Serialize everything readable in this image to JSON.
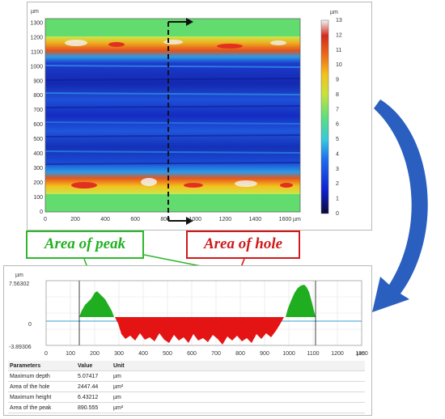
{
  "top_map": {
    "x_unit": "µm",
    "x_ticks": [
      "0",
      "200",
      "400",
      "600",
      "800",
      "1000",
      "1200",
      "1400",
      "1600"
    ],
    "y_ticks": [
      "0",
      "100",
      "200",
      "300",
      "400",
      "500",
      "600",
      "700",
      "800",
      "900",
      "1000",
      "1100",
      "1200",
      "1300"
    ],
    "y_unit": "µm",
    "colorbar_unit": "µm",
    "colorbar_ticks": [
      "13",
      "12",
      "11",
      "10",
      "9",
      "8",
      "7",
      "6",
      "5",
      "4",
      "3",
      "2",
      "1",
      "0"
    ]
  },
  "callouts": {
    "peak": "Area of peak",
    "hole": "Area of hole"
  },
  "profile": {
    "y_unit": "µm",
    "y_max_label": "7.56302",
    "y_zero_label": "0",
    "y_min_label": "-3.89306",
    "x_ticks": [
      "0",
      "100",
      "200",
      "300",
      "400",
      "500",
      "600",
      "700",
      "800",
      "900",
      "1000",
      "1100",
      "1200",
      "1300"
    ],
    "x_unit": "µm",
    "colors": {
      "peak": "#1fae1f",
      "hole": "#e41414",
      "line": "#3a9bd6"
    }
  },
  "table": {
    "headers": [
      "Parameters",
      "Value",
      "Unit"
    ],
    "rows": [
      [
        "Maximum depth",
        "5.07417",
        "µm"
      ],
      [
        "Area of the hole",
        "2447.44",
        "µm²"
      ],
      [
        "Maximum height",
        "6.43212",
        "µm"
      ],
      [
        "Area of the peak",
        "890.555",
        "µm²"
      ]
    ]
  },
  "colors": {
    "arrow": "#2b5fbf",
    "peak_callout": "#22b022",
    "hole_callout": "#d01a1a"
  }
}
